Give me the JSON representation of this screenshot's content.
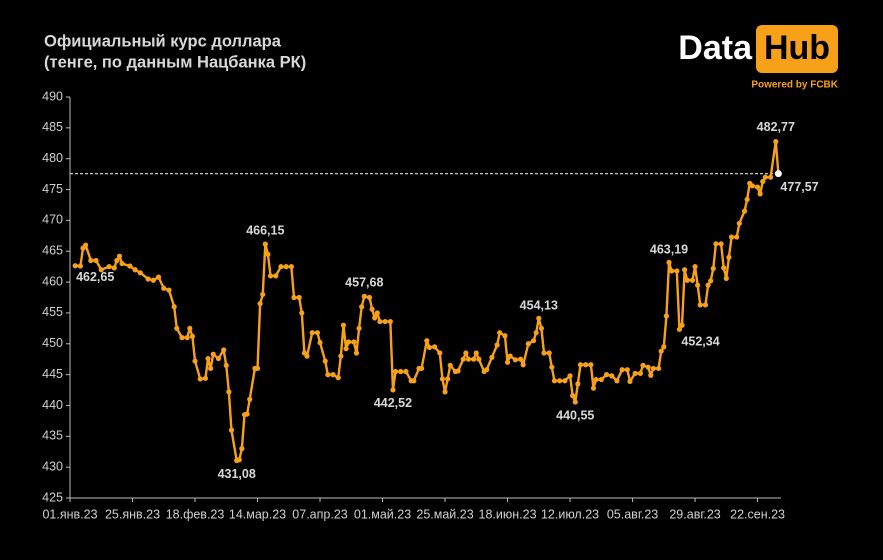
{
  "chart_data": {
    "type": "line",
    "title": "Официальный курс доллара",
    "subtitle": "(тенге, по данным Нацбанка  РК)",
    "logo": {
      "word1": "Data",
      "word2": "Hub",
      "tagline": "Powered by FCBK"
    },
    "color": "#f7a11a",
    "last_point_color": "#ffffff",
    "x": [
      "2023-01-03",
      "2023-01-05",
      "2023-01-06",
      "2023-01-07",
      "2023-01-09",
      "2023-01-11",
      "2023-01-13",
      "2023-01-16",
      "2023-01-18",
      "2023-01-19",
      "2023-01-20",
      "2023-01-21",
      "2023-01-24",
      "2023-01-26",
      "2023-01-28",
      "2023-01-31",
      "2023-02-02",
      "2023-02-04",
      "2023-02-06",
      "2023-02-08",
      "2023-02-10",
      "2023-02-11",
      "2023-02-13",
      "2023-02-15",
      "2023-02-16",
      "2023-02-17",
      "2023-02-18",
      "2023-02-20",
      "2023-02-22",
      "2023-02-23",
      "2023-02-24",
      "2023-02-25",
      "2023-02-27",
      "2023-03-01",
      "2023-03-02",
      "2023-03-03",
      "2023-03-04",
      "2023-03-06",
      "2023-03-07",
      "2023-03-08",
      "2023-03-09",
      "2023-03-10",
      "2023-03-11",
      "2023-03-13",
      "2023-03-14",
      "2023-03-15",
      "2023-03-16",
      "2023-03-17",
      "2023-03-18",
      "2023-03-19",
      "2023-03-21",
      "2023-03-23",
      "2023-03-25",
      "2023-03-27",
      "2023-03-28",
      "2023-03-30",
      "2023-03-31",
      "2023-04-01",
      "2023-04-02",
      "2023-04-04",
      "2023-04-06",
      "2023-04-07",
      "2023-04-09",
      "2023-04-10",
      "2023-04-12",
      "2023-04-14",
      "2023-04-15",
      "2023-04-16",
      "2023-04-17",
      "2023-04-18",
      "2023-04-20",
      "2023-04-21",
      "2023-04-22",
      "2023-04-23",
      "2023-04-24",
      "2023-04-26",
      "2023-04-27",
      "2023-04-28",
      "2023-04-29",
      "2023-04-30",
      "2023-05-02",
      "2023-05-04",
      "2023-05-05",
      "2023-05-06",
      "2023-05-08",
      "2023-05-10",
      "2023-05-12",
      "2023-05-13",
      "2023-05-15",
      "2023-05-16",
      "2023-05-18",
      "2023-05-19",
      "2023-05-21",
      "2023-05-23",
      "2023-05-24",
      "2023-05-25",
      "2023-05-26",
      "2023-05-27",
      "2023-05-29",
      "2023-05-30",
      "2023-06-01",
      "2023-06-02",
      "2023-06-03",
      "2023-06-05",
      "2023-06-06",
      "2023-06-07",
      "2023-06-09",
      "2023-06-10",
      "2023-06-12",
      "2023-06-14",
      "2023-06-15",
      "2023-06-17",
      "2023-06-18",
      "2023-06-19",
      "2023-06-21",
      "2023-06-23",
      "2023-06-24",
      "2023-06-26",
      "2023-06-28",
      "2023-06-29",
      "2023-06-30",
      "2023-07-01",
      "2023-07-02",
      "2023-07-04",
      "2023-07-05",
      "2023-07-06",
      "2023-07-08",
      "2023-07-10",
      "2023-07-12",
      "2023-07-13",
      "2023-07-14",
      "2023-07-15",
      "2023-07-16",
      "2023-07-18",
      "2023-07-20",
      "2023-07-21",
      "2023-07-22",
      "2023-07-24",
      "2023-07-26",
      "2023-07-28",
      "2023-07-30",
      "2023-08-01",
      "2023-08-03",
      "2023-08-04",
      "2023-08-06",
      "2023-08-08",
      "2023-08-09",
      "2023-08-11",
      "2023-08-12",
      "2023-08-13",
      "2023-08-15",
      "2023-08-16",
      "2023-08-17",
      "2023-08-18",
      "2023-08-19",
      "2023-08-20",
      "2023-08-22",
      "2023-08-23",
      "2023-08-24",
      "2023-08-25",
      "2023-08-26",
      "2023-08-28",
      "2023-08-29",
      "2023-08-30",
      "2023-08-31",
      "2023-09-02",
      "2023-09-03",
      "2023-09-04",
      "2023-09-05",
      "2023-09-06",
      "2023-09-08",
      "2023-09-09",
      "2023-09-10",
      "2023-09-11",
      "2023-09-12",
      "2023-09-14",
      "2023-09-15",
      "2023-09-17",
      "2023-09-18",
      "2023-09-19",
      "2023-09-20",
      "2023-09-22",
      "2023-09-23",
      "2023-09-24",
      "2023-09-25",
      "2023-09-27",
      "2023-09-29",
      "2023-09-30"
    ],
    "values": [
      462.65,
      462.6,
      465.5,
      466,
      463.5,
      463.5,
      462,
      462.5,
      462.3,
      463.5,
      464.2,
      463,
      462.6,
      462,
      461.5,
      460.5,
      460.3,
      460.8,
      459,
      458.7,
      456,
      452.5,
      451,
      451,
      452.5,
      451.2,
      447.2,
      444.3,
      444.4,
      447.6,
      446,
      448.3,
      447.6,
      449,
      446.5,
      442.2,
      436,
      431.08,
      431.2,
      433,
      438.5,
      438.6,
      441,
      446,
      446,
      456.5,
      458,
      466.15,
      464.5,
      461,
      461,
      462.5,
      462.5,
      462.5,
      457.5,
      457.5,
      455,
      448.5,
      448,
      451.8,
      451.8,
      450.2,
      447.2,
      445,
      445,
      444.5,
      448,
      453,
      449.2,
      450.3,
      450.3,
      448.5,
      452.5,
      456,
      457.68,
      457.5,
      455.6,
      454.2,
      455,
      453.6,
      453.6,
      453.6,
      442.52,
      445.5,
      445.5,
      445.5,
      444,
      444,
      446,
      446,
      450.5,
      449.4,
      449.5,
      448.5,
      444.3,
      442.2,
      444.3,
      446.5,
      445.5,
      445.6,
      447.5,
      448.5,
      447.5,
      447.5,
      448.5,
      447.5,
      445.5,
      445.8,
      447.8,
      449.8,
      451.8,
      451.3,
      447,
      448,
      447.4,
      447.5,
      446.6,
      450,
      450.5,
      451.8,
      454.13,
      452.5,
      448.5,
      448.5,
      446.2,
      444,
      444,
      444,
      444.8,
      441.6,
      440.55,
      443.5,
      446.6,
      446.6,
      446.6,
      442.8,
      444.2,
      444.2,
      445,
      444.8,
      444,
      445.8,
      445.8,
      443.9,
      445.2,
      445.2,
      446.5,
      446.2,
      444.9,
      446,
      446,
      448.8,
      449.5,
      454.5,
      463.19,
      461.8,
      461.8,
      452.34,
      453,
      462,
      460.3,
      460.3,
      462.5,
      459.5,
      456.3,
      456.3,
      459.5,
      460.2,
      462.2,
      466.2,
      466.2,
      462.3,
      460.6,
      464,
      467.3,
      467.3,
      469.5,
      471.5,
      473.4,
      476,
      475.6,
      475.4,
      474.3,
      476.3,
      477,
      477,
      482.77,
      477.57
    ],
    "annotations": [
      {
        "x": "2023-01-03",
        "y": 462.65,
        "label": "462,65"
      },
      {
        "x": "2023-03-06",
        "y": 431.08,
        "label": "431,08"
      },
      {
        "x": "2023-03-17",
        "y": 466.15,
        "label": "466,15"
      },
      {
        "x": "2023-04-24",
        "y": 457.68,
        "label": "457,68"
      },
      {
        "x": "2023-05-05",
        "y": 442.52,
        "label": "442,52"
      },
      {
        "x": "2023-06-30",
        "y": 454.13,
        "label": "454,13"
      },
      {
        "x": "2023-07-14",
        "y": 440.55,
        "label": "440,55"
      },
      {
        "x": "2023-08-19",
        "y": 463.19,
        "label": "463,19"
      },
      {
        "x": "2023-08-23",
        "y": 452.34,
        "label": "452,34"
      },
      {
        "x": "2023-09-29",
        "y": 482.77,
        "label": "482,77"
      },
      {
        "x": "2023-09-30",
        "y": 477.57,
        "label": "477,57"
      }
    ],
    "reference_line": 477.57,
    "xlim": [
      "2023-01-01",
      "2023-10-01"
    ],
    "xticks": [
      {
        "value": "2023-01-01",
        "label": "01.янв.23"
      },
      {
        "value": "2023-01-25",
        "label": "25.янв.23"
      },
      {
        "value": "2023-02-18",
        "label": "18.фев.23"
      },
      {
        "value": "2023-03-14",
        "label": "14.мар.23"
      },
      {
        "value": "2023-04-07",
        "label": "07.апр.23"
      },
      {
        "value": "2023-05-01",
        "label": "01.май.23"
      },
      {
        "value": "2023-05-25",
        "label": "25.май.23"
      },
      {
        "value": "2023-06-18",
        "label": "18.июн.23"
      },
      {
        "value": "2023-07-12",
        "label": "12.июл.23"
      },
      {
        "value": "2023-08-05",
        "label": "05.авг.23"
      },
      {
        "value": "2023-08-29",
        "label": "29.авг.23"
      },
      {
        "value": "2023-09-22",
        "label": "22.сен.23"
      }
    ],
    "ylim": [
      425,
      490
    ],
    "yticks": [
      425,
      430,
      435,
      440,
      445,
      450,
      455,
      460,
      465,
      470,
      475,
      480,
      485,
      490
    ]
  }
}
